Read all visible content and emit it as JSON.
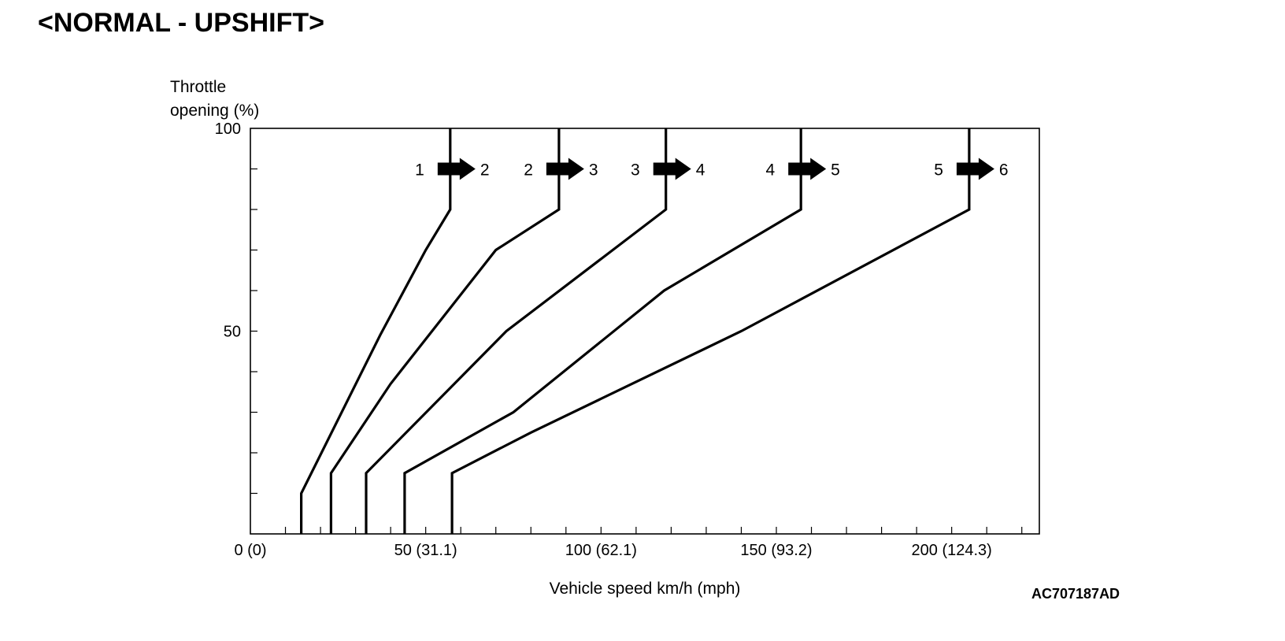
{
  "title": "<NORMAL - UPSHIFT>",
  "figure_code": "AC707187AD",
  "chart_data": {
    "type": "line",
    "title": "<NORMAL - UPSHIFT>",
    "ylabel_lines": [
      "Throttle",
      "opening (%)"
    ],
    "xlabel": "Vehicle speed km/h (mph)",
    "xlim": [
      0,
      225
    ],
    "ylim": [
      0,
      100
    ],
    "x_tick_labels": [
      {
        "value": 0,
        "label": "0 (0)"
      },
      {
        "value": 50,
        "label": "50 (31.1)"
      },
      {
        "value": 100,
        "label": "100 (62.1)"
      },
      {
        "value": 150,
        "label": "150 (93.2)"
      },
      {
        "value": 200,
        "label": "200 (124.3)"
      }
    ],
    "x_minor_ticks": [
      0,
      10,
      20,
      30,
      40,
      50,
      60,
      70,
      80,
      90,
      100,
      110,
      120,
      130,
      140,
      150,
      160,
      170,
      180,
      190,
      200,
      210,
      220
    ],
    "y_tick_labels": [
      {
        "value": 0,
        "label": ""
      },
      {
        "value": 50,
        "label": "50"
      },
      {
        "value": 100,
        "label": "100"
      }
    ],
    "y_minor_ticks": [
      10,
      20,
      30,
      40,
      50,
      60,
      70,
      80,
      90
    ],
    "grid": false,
    "series": [
      {
        "from": "1",
        "to": "2",
        "points": [
          [
            14.5,
            0
          ],
          [
            14.5,
            10
          ],
          [
            37,
            49
          ],
          [
            50,
            70
          ],
          [
            57,
            80
          ],
          [
            57,
            100
          ]
        ]
      },
      {
        "from": "2",
        "to": "3",
        "points": [
          [
            23,
            0
          ],
          [
            23,
            15
          ],
          [
            40,
            37
          ],
          [
            70,
            70
          ],
          [
            88,
            80
          ],
          [
            88,
            100
          ]
        ]
      },
      {
        "from": "3",
        "to": "4",
        "points": [
          [
            33,
            0
          ],
          [
            33,
            15
          ],
          [
            73,
            50
          ],
          [
            118.5,
            80
          ],
          [
            118.5,
            100
          ]
        ]
      },
      {
        "from": "4",
        "to": "5",
        "points": [
          [
            44,
            0
          ],
          [
            44,
            15
          ],
          [
            75,
            30
          ],
          [
            118,
            60
          ],
          [
            157,
            80
          ],
          [
            157,
            100
          ]
        ]
      },
      {
        "from": "5",
        "to": "6",
        "points": [
          [
            57.5,
            0
          ],
          [
            57.5,
            15
          ],
          [
            80,
            25
          ],
          [
            140,
            50
          ],
          [
            205,
            80
          ],
          [
            205,
            100
          ]
        ]
      }
    ],
    "shift_label_y": 90
  }
}
